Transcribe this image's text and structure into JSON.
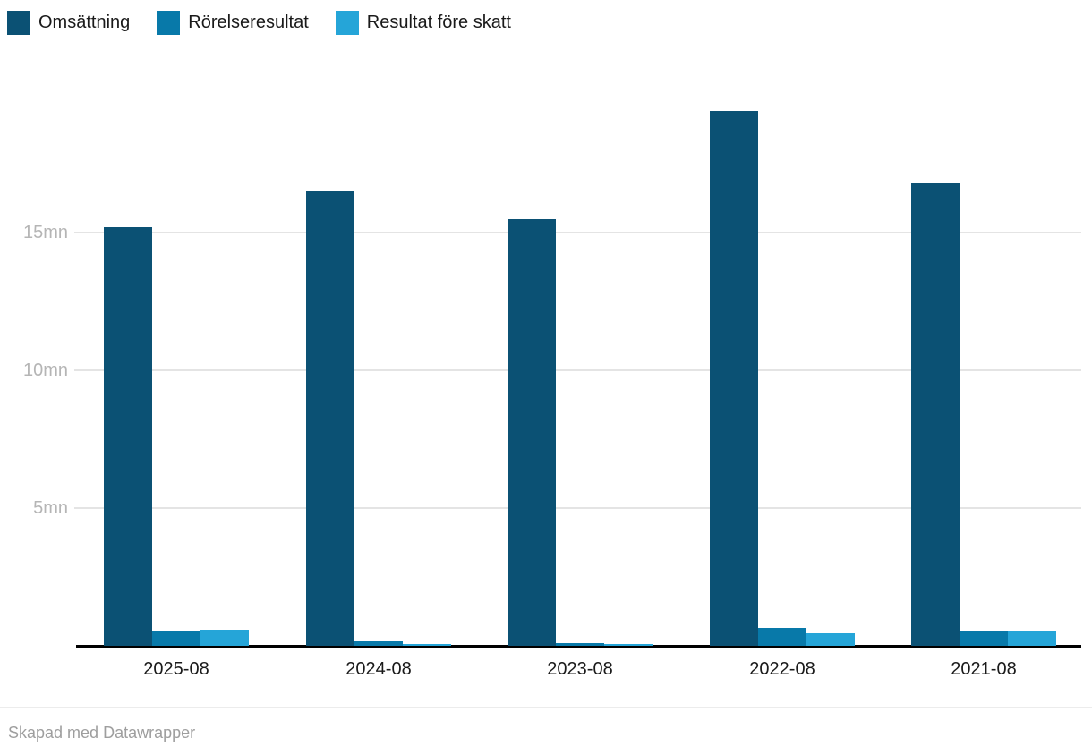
{
  "chart_data": {
    "type": "bar",
    "grouped": true,
    "title": "",
    "xlabel": "",
    "ylabel": "",
    "unit": "mn",
    "categories": [
      "2025-08",
      "2024-08",
      "2023-08",
      "2022-08",
      "2021-08"
    ],
    "series": [
      {
        "name": "Omsättning",
        "color": "#0b5174",
        "values": [
          15.2,
          16.5,
          15.5,
          19.4,
          16.8
        ]
      },
      {
        "name": "Rörelseresultat",
        "color": "#0879a9",
        "values": [
          0.55,
          0.15,
          0.1,
          0.65,
          0.55
        ]
      },
      {
        "name": "Resultat före skatt",
        "color": "#25a5d8",
        "values": [
          0.6,
          0.08,
          0.05,
          0.45,
          0.55
        ]
      }
    ],
    "yticks": [
      {
        "value": 5,
        "label": "5mn"
      },
      {
        "value": 10,
        "label": "10mn"
      },
      {
        "value": 15,
        "label": "15mn"
      }
    ],
    "ylim": [
      0,
      20
    ],
    "grid": "horizontal",
    "legend_position": "top-left"
  },
  "colors": {
    "background": "#ffffff",
    "axis_line": "#000000",
    "gridline": "#e4e4e4",
    "ytick_text": "#b5b5b5",
    "xtick_text": "#1a1a1a",
    "legend_text": "#1a1a1a",
    "footer_text": "#9e9e9e",
    "footer_divider": "#ececec"
  },
  "footer": {
    "credit": "Skapad med Datawrapper"
  }
}
